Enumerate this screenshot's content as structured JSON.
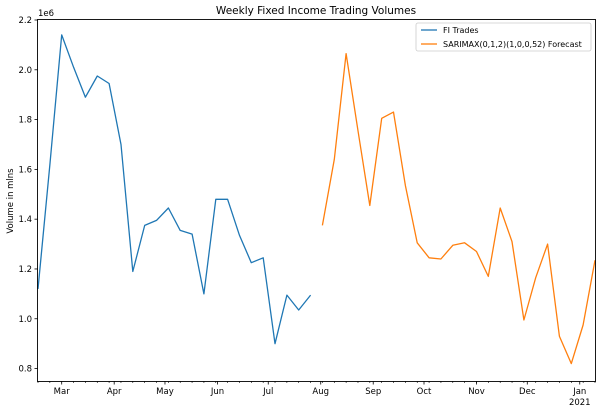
{
  "chart_data": {
    "type": "line",
    "title": "Weekly Fixed Income Trading Volumes",
    "xlabel": "",
    "ylabel": "Volume in mlns",
    "y_offset_text": "1e6",
    "ylim": [
      750000,
      2200000
    ],
    "xlim": [
      "2020-02-16",
      "2021-01-10"
    ],
    "yticks": [
      0.8,
      1.0,
      1.2,
      1.4,
      1.6,
      1.8,
      2.0,
      2.2
    ],
    "ytick_labels": [
      "0.8",
      "1.0",
      "1.2",
      "1.4",
      "1.6",
      "1.8",
      "2.0",
      "2.2"
    ],
    "xticks": [
      {
        "date": "2020-03-01",
        "label": "Mar"
      },
      {
        "date": "2020-04-01",
        "label": "Apr"
      },
      {
        "date": "2020-05-01",
        "label": "May"
      },
      {
        "date": "2020-06-01",
        "label": "Jun"
      },
      {
        "date": "2020-07-01",
        "label": "Jul"
      },
      {
        "date": "2020-08-01",
        "label": "Aug"
      },
      {
        "date": "2020-09-01",
        "label": "Sep"
      },
      {
        "date": "2020-10-01",
        "label": "Oct"
      },
      {
        "date": "2020-11-01",
        "label": "Nov"
      },
      {
        "date": "2020-12-01",
        "label": "Dec"
      },
      {
        "date": "2021-01-01",
        "label": "Jan\n2021"
      }
    ],
    "grid": false,
    "legend_position": "top-right",
    "series": [
      {
        "name": "FI Trades",
        "color": "#1f77b4",
        "x": [
          "2020-02-16",
          "2020-02-23",
          "2020-03-01",
          "2020-03-08",
          "2020-03-15",
          "2020-03-22",
          "2020-03-29",
          "2020-04-05",
          "2020-04-12",
          "2020-04-19",
          "2020-04-26",
          "2020-05-03",
          "2020-05-10",
          "2020-05-17",
          "2020-05-24",
          "2020-05-31",
          "2020-06-07",
          "2020-06-14",
          "2020-06-21",
          "2020-06-28",
          "2020-07-05",
          "2020-07-12",
          "2020-07-19",
          "2020-07-26"
        ],
        "values": [
          1120000,
          1620000,
          2140000,
          2010000,
          1890000,
          1975000,
          1945000,
          1700000,
          1190000,
          1375000,
          1395000,
          1445000,
          1355000,
          1340000,
          1100000,
          1480000,
          1480000,
          1335000,
          1225000,
          1245000,
          900000,
          1095000,
          1035000,
          1095000
        ]
      },
      {
        "name": "SARIMAX(0,1,2)(1,0,0,52) Forecast",
        "color": "#ff7f0e",
        "x": [
          "2020-08-02",
          "2020-08-09",
          "2020-08-16",
          "2020-08-23",
          "2020-08-30",
          "2020-09-06",
          "2020-09-13",
          "2020-09-20",
          "2020-09-27",
          "2020-10-04",
          "2020-10-11",
          "2020-10-18",
          "2020-10-25",
          "2020-11-01",
          "2020-11-08",
          "2020-11-15",
          "2020-11-22",
          "2020-11-29",
          "2020-12-06",
          "2020-12-13",
          "2020-12-20",
          "2020-12-27",
          "2021-01-03",
          "2021-01-10"
        ],
        "values": [
          1375000,
          1640000,
          2065000,
          1755000,
          1455000,
          1805000,
          1830000,
          1535000,
          1305000,
          1245000,
          1240000,
          1295000,
          1305000,
          1270000,
          1170000,
          1445000,
          1310000,
          995000,
          1165000,
          1300000,
          930000,
          820000,
          975000,
          1235000
        ]
      }
    ]
  }
}
